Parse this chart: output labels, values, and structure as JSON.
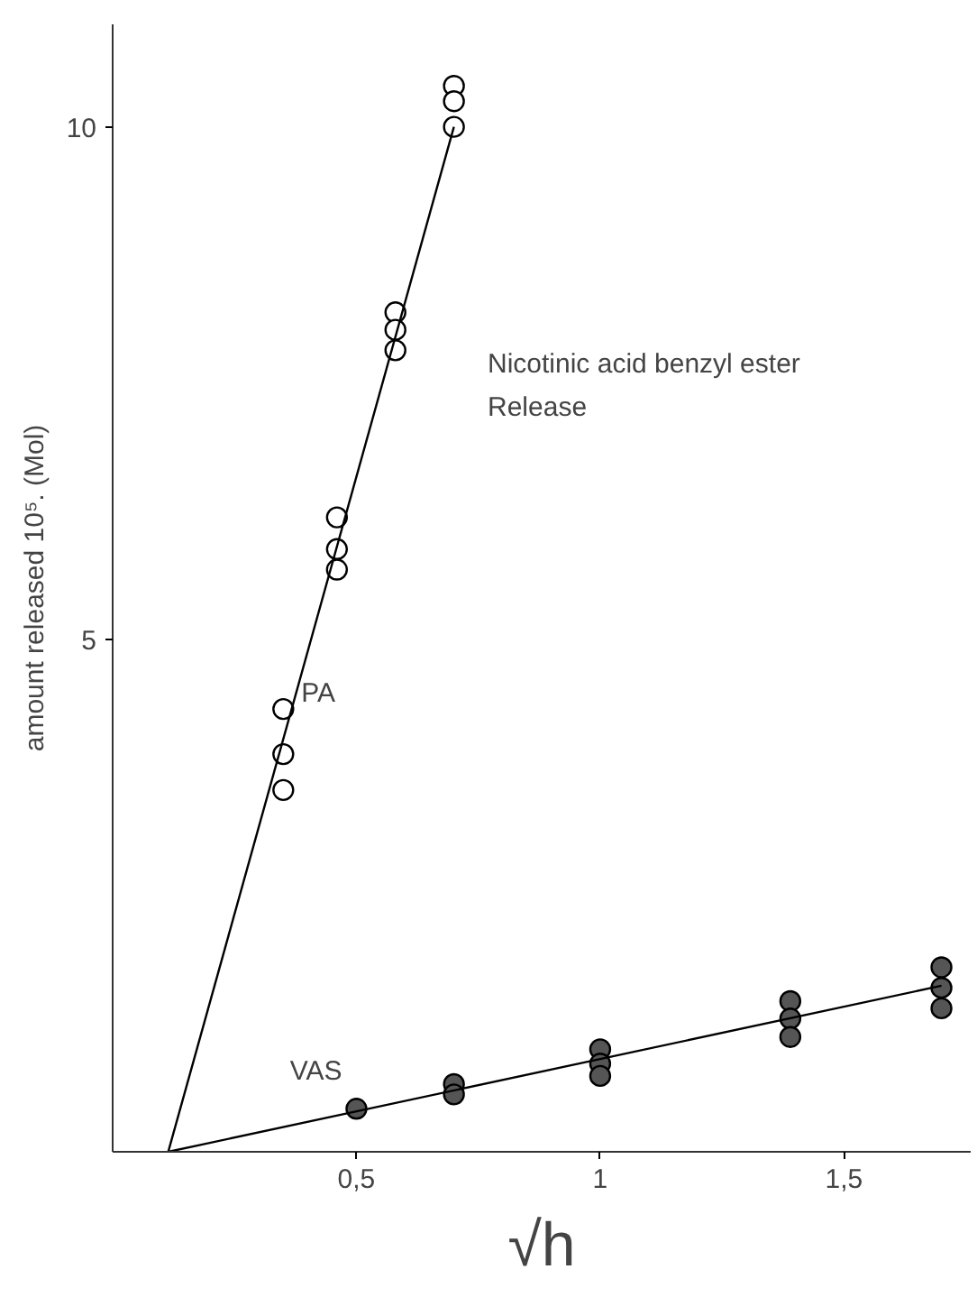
{
  "chart_data": {
    "type": "scatter",
    "xlabel": "√h",
    "ylabel": "amount released 10⁵. (Mol)",
    "annotations": [
      "Nicotinic acid benzyl ester",
      "Release"
    ],
    "xlim": [
      0,
      1.76
    ],
    "ylim": [
      0,
      11.0
    ],
    "xticks": [
      {
        "value": 0.5,
        "label": "0,5"
      },
      1,
      {
        "value": 1.5,
        "label": "1,5"
      }
    ],
    "yticks": [
      5,
      10
    ],
    "grid": false,
    "series": [
      {
        "name": "PA",
        "marker": "circle",
        "color": "#ffffff",
        "x": [
          0.35,
          0.35,
          0.35,
          0.46,
          0.46,
          0.46,
          0.58,
          0.58,
          0.58,
          0.7,
          0.7,
          0.7
        ],
        "values": [
          4.32,
          3.88,
          3.53,
          6.19,
          5.88,
          5.68,
          8.19,
          8.02,
          7.82,
          10.4,
          10.25,
          10.0
        ]
      },
      {
        "type": "line",
        "marker": "none",
        "color": "#000000",
        "x": [
          0.114,
          0.7
        ],
        "values": [
          0,
          10.0
        ]
      },
      {
        "name": "VAS",
        "marker": "circle",
        "color": "#555555",
        "x": [
          0.5,
          0.7,
          0.7,
          1.0,
          1.0,
          1.0,
          1.39,
          1.39,
          1.39,
          1.7,
          1.7,
          1.7
        ],
        "values": [
          0.42,
          0.66,
          0.56,
          1.0,
          0.86,
          0.74,
          1.47,
          1.3,
          1.12,
          1.8,
          1.6,
          1.4
        ]
      },
      {
        "type": "line",
        "marker": "none",
        "color": "#000000",
        "x": [
          0.114,
          1.7
        ],
        "values": [
          0,
          1.62
        ]
      }
    ]
  }
}
